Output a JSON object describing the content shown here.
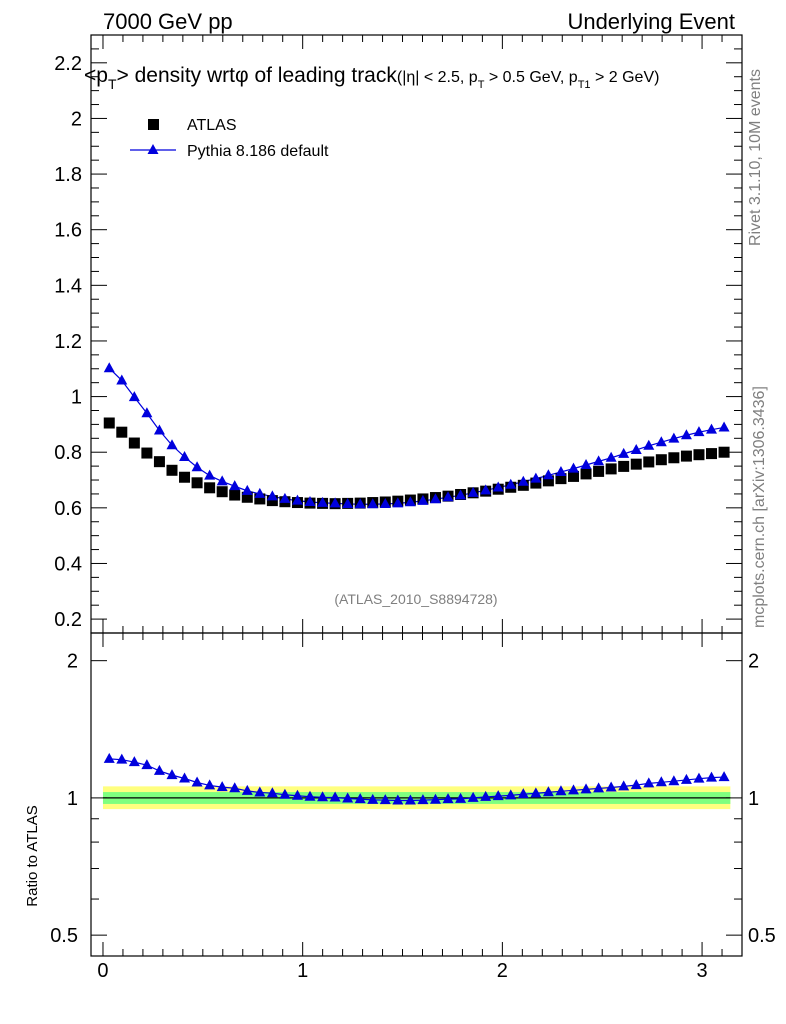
{
  "header": {
    "left": "7000 GeV pp",
    "right": "Underlying Event"
  },
  "side_labels": {
    "rivet": "Rivet 3.1.10,  10M events",
    "mcplots": "mcplots.cern.ch [arXiv:1306.3436]"
  },
  "colors": {
    "atlas": "#000000",
    "pythia": "#0000dd",
    "band_inner": "#7fff7f",
    "band_outer": "#ffff7f"
  },
  "chart_data": [
    {
      "type": "scatter",
      "panel": "main",
      "title_parts": {
        "p1": "<p",
        "sub1": "T",
        "p2": "> density wrt",
        "phi": "φ",
        "p3": " of leading track",
        "s1": "(|η| < 2.5, p",
        "sub2": "T",
        "s2": " > 0.5 GeV, p",
        "sub3": "T1",
        "s3": " > 2 GeV)"
      },
      "annotation": "(ATLAS_2010_S8894728)",
      "xlim": [
        -0.06,
        3.2
      ],
      "ylim": [
        0.15,
        2.3
      ],
      "yticks": [
        0.2,
        0.4,
        0.6,
        0.8,
        1,
        1.2,
        1.4,
        1.6,
        1.8,
        2,
        2.2
      ],
      "ytick_labels": [
        "0.2",
        "0.4",
        "0.6",
        "0.8",
        "1",
        "1.2",
        "1.4",
        "1.6",
        "1.8",
        "2",
        "2.2"
      ],
      "legend_placement": "top-left",
      "x": [
        0.0314,
        0.0942,
        0.1571,
        0.2199,
        0.2827,
        0.3456,
        0.4084,
        0.4712,
        0.5341,
        0.5969,
        0.6597,
        0.7226,
        0.7854,
        0.8482,
        0.9111,
        0.9739,
        1.0367,
        1.0996,
        1.1624,
        1.2252,
        1.2881,
        1.3509,
        1.4137,
        1.4765,
        1.5394,
        1.6022,
        1.665,
        1.7279,
        1.7907,
        1.8535,
        1.9164,
        1.9792,
        2.042,
        2.1049,
        2.1677,
        2.2305,
        2.2934,
        2.3562,
        2.419,
        2.4819,
        2.5447,
        2.6075,
        2.6704,
        2.7332,
        2.796,
        2.8588,
        2.9217,
        2.9845,
        3.0473,
        3.1102
      ],
      "series": [
        {
          "name": "ATLAS",
          "marker": "square",
          "values": [
            0.905,
            0.872,
            0.833,
            0.797,
            0.766,
            0.735,
            0.71,
            0.69,
            0.672,
            0.658,
            0.646,
            0.638,
            0.632,
            0.626,
            0.622,
            0.619,
            0.617,
            0.616,
            0.615,
            0.616,
            0.617,
            0.619,
            0.621,
            0.624,
            0.628,
            0.632,
            0.637,
            0.642,
            0.648,
            0.654,
            0.66,
            0.667,
            0.674,
            0.681,
            0.689,
            0.697,
            0.705,
            0.713,
            0.722,
            0.731,
            0.74,
            0.749,
            0.757,
            0.765,
            0.773,
            0.78,
            0.786,
            0.791,
            0.795,
            0.8
          ]
        },
        {
          "name": "Pythia 8.186 default",
          "marker": "triangle",
          "values": [
            1.102,
            1.058,
            0.998,
            0.94,
            0.878,
            0.825,
            0.783,
            0.746,
            0.716,
            0.695,
            0.678,
            0.661,
            0.65,
            0.641,
            0.632,
            0.626,
            0.621,
            0.618,
            0.616,
            0.614,
            0.613,
            0.613,
            0.614,
            0.616,
            0.62,
            0.625,
            0.631,
            0.638,
            0.645,
            0.654,
            0.663,
            0.673,
            0.683,
            0.694,
            0.705,
            0.717,
            0.729,
            0.741,
            0.754,
            0.767,
            0.78,
            0.794,
            0.808,
            0.823,
            0.836,
            0.849,
            0.861,
            0.872,
            0.881,
            0.889
          ]
        }
      ]
    },
    {
      "type": "line",
      "panel": "ratio",
      "ylabel": "Ratio to ATLAS",
      "ylim": [
        0.45,
        2.3
      ],
      "scale": "log",
      "yticks": [
        0.5,
        1,
        2
      ],
      "ytick_labels": [
        "0.5",
        "1",
        "2"
      ],
      "xticks": [
        0,
        1,
        2,
        3
      ],
      "xtick_labels": [
        "0",
        "1",
        "2",
        "3"
      ],
      "band_inner": [
        0.97,
        1.03
      ],
      "band_outer": [
        0.945,
        1.06
      ],
      "series": [
        {
          "name": "Pythia 8.186 default",
          "values": [
            1.218,
            1.213,
            1.198,
            1.18,
            1.146,
            1.122,
            1.103,
            1.081,
            1.065,
            1.056,
            1.05,
            1.036,
            1.028,
            1.024,
            1.016,
            1.011,
            1.006,
            1.003,
            1.002,
            0.997,
            0.994,
            0.99,
            0.989,
            0.987,
            0.987,
            0.989,
            0.991,
            0.994,
            0.995,
            1.0,
            1.005,
            1.009,
            1.013,
            1.019,
            1.023,
            1.029,
            1.034,
            1.039,
            1.044,
            1.049,
            1.054,
            1.06,
            1.067,
            1.076,
            1.082,
            1.088,
            1.095,
            1.102,
            1.108,
            1.111
          ]
        }
      ]
    }
  ]
}
